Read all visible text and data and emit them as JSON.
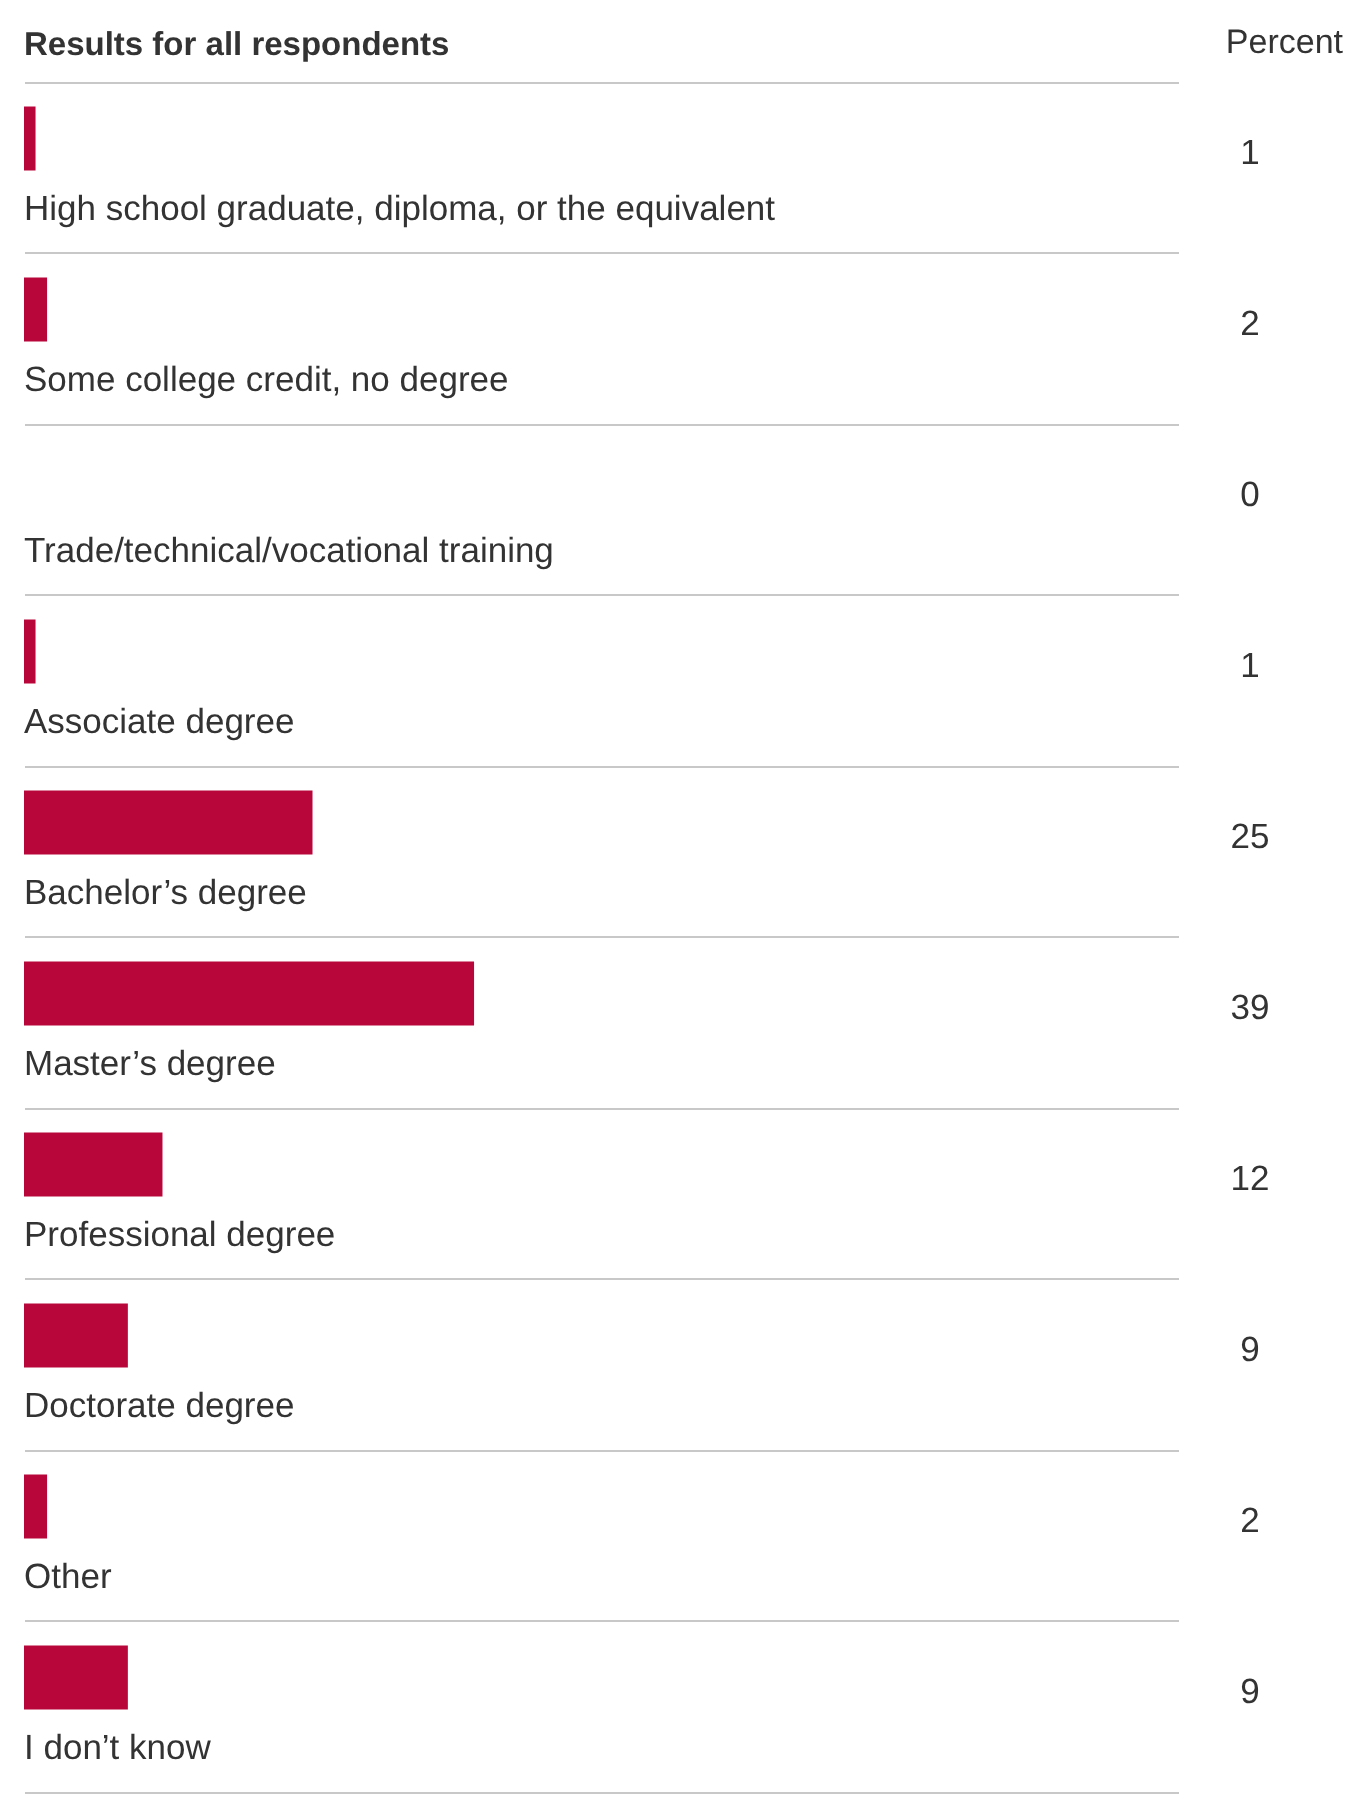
{
  "chart_data": {
    "type": "bar",
    "orientation": "horizontal",
    "title": "Results for all respondents",
    "xlabel": "Percent",
    "categories": [
      "High school graduate, diploma, or the equivalent",
      "Some college credit, no degree",
      "Trade/technical/vocational training",
      "Associate degree",
      "Bachelor’s degree",
      "Master’s degree",
      "Professional degree",
      "Doctorate degree",
      "Other",
      "I don’t know"
    ],
    "values": [
      1,
      2,
      0,
      1,
      25,
      39,
      12,
      9,
      2,
      9
    ],
    "color": "#b8063a",
    "xlim": [
      0,
      100
    ],
    "data_labels": true,
    "grid": true
  }
}
